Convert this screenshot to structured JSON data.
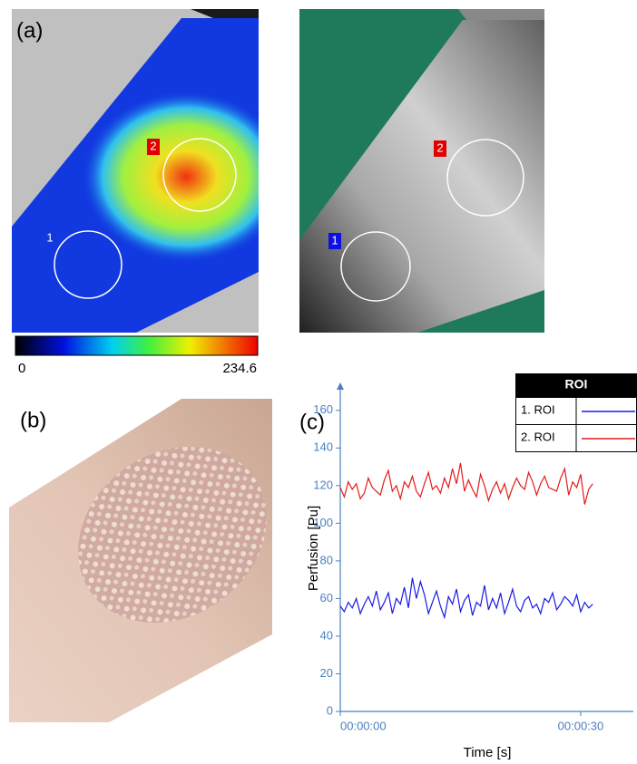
{
  "panels": {
    "a": {
      "label": "(a)",
      "roi_labels": [
        "1",
        "2"
      ],
      "colorbar": {
        "min": 0,
        "max": 234.6
      }
    },
    "b": {
      "label": "(b)"
    },
    "c": {
      "label": "(c)"
    }
  },
  "chart_data": {
    "type": "line",
    "x": [
      0,
      0.5,
      1,
      1.5,
      2,
      2.5,
      3,
      3.5,
      4,
      4.5,
      5,
      5.5,
      6,
      6.5,
      7,
      7.5,
      8,
      8.5,
      9,
      9.5,
      10,
      10.5,
      11,
      11.5,
      12,
      12.5,
      13,
      13.5,
      14,
      14.5,
      15,
      15.5,
      16,
      16.5,
      17,
      17.5,
      18,
      18.5,
      19,
      19.5,
      20,
      20.5,
      21,
      21.5,
      22,
      22.5,
      23,
      23.5,
      24,
      24.5,
      25,
      25.5,
      26,
      26.5,
      27,
      27.5,
      28,
      28.5,
      29,
      29.5,
      30,
      30.5,
      31,
      31.5
    ],
    "series": [
      {
        "name": "1. ROI",
        "color": "#1a1ae6",
        "values": [
          56,
          53,
          58,
          55,
          60,
          52,
          57,
          61,
          56,
          64,
          54,
          58,
          63,
          52,
          60,
          57,
          66,
          55,
          71,
          60,
          69,
          62,
          52,
          58,
          64,
          56,
          50,
          61,
          57,
          65,
          53,
          59,
          62,
          51,
          58,
          56,
          67,
          54,
          60,
          55,
          63,
          52,
          58,
          65,
          56,
          53,
          59,
          61,
          55,
          57,
          52,
          60,
          58,
          63,
          54,
          57,
          61,
          59,
          56,
          62,
          53,
          58,
          55,
          57
        ]
      },
      {
        "name": "2. ROI",
        "color": "#e61a1a",
        "values": [
          119,
          114,
          122,
          118,
          121,
          113,
          116,
          124,
          119,
          117,
          115,
          123,
          128,
          117,
          120,
          113,
          122,
          119,
          125,
          117,
          114,
          121,
          127,
          118,
          120,
          116,
          124,
          119,
          129,
          121,
          132,
          117,
          123,
          118,
          114,
          126,
          120,
          112,
          118,
          122,
          116,
          121,
          113,
          119,
          124,
          120,
          118,
          127,
          122,
          115,
          121,
          125,
          119,
          118,
          117,
          124,
          129,
          115,
          122,
          119,
          126,
          110,
          118,
          121
        ]
      }
    ],
    "xlim": [
      0,
      36.8
    ],
    "xticks": [
      {
        "value": 0,
        "label": "00:00:00"
      },
      {
        "value": 30,
        "label": "00:00:30"
      }
    ],
    "ylim": [
      0,
      170
    ],
    "yticks": [
      0,
      20,
      40,
      60,
      80,
      100,
      120,
      140,
      160
    ],
    "xlabel": "Time [s]",
    "ylabel": "Perfusion [Pu]",
    "legend_title": "ROI",
    "legend": "upper right",
    "grid": false
  }
}
